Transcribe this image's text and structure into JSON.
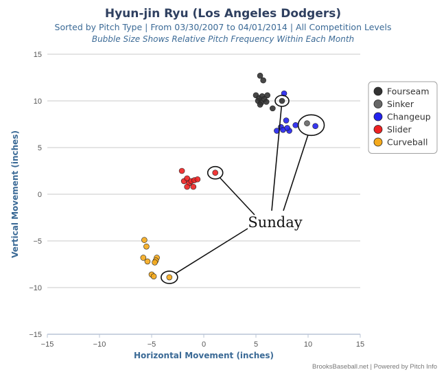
{
  "chart_data": {
    "type": "scatter",
    "title": "Hyun-jin Ryu (Los Angeles Dodgers)",
    "subtitle": "Sorted by Pitch Type | From 03/30/2007 to 04/01/2014 | All Competition Levels",
    "subtitle2": "Bubble Size Shows Relative Pitch Frequency Within Each Month",
    "xlabel": "Horizontal Movement (inches)",
    "ylabel": "Vertical Movement (inches)",
    "xlim": [
      -15,
      15
    ],
    "ylim": [
      -15,
      15
    ],
    "xticks": [
      "−15",
      "−10",
      "−5",
      "0",
      "5",
      "10",
      "15"
    ],
    "yticks": [
      "15",
      "10",
      "5",
      "0",
      "−5",
      "−10",
      "−15"
    ],
    "grid": true,
    "legend_position": "top-right",
    "series": [
      {
        "name": "Fourseam",
        "color": "#333333",
        "points": [
          {
            "x": 5.4,
            "y": 12.7
          },
          {
            "x": 5.7,
            "y": 12.2
          },
          {
            "x": 5.0,
            "y": 10.6
          },
          {
            "x": 5.3,
            "y": 10.3
          },
          {
            "x": 5.6,
            "y": 10.5
          },
          {
            "x": 6.1,
            "y": 10.6
          },
          {
            "x": 5.2,
            "y": 10.0
          },
          {
            "x": 5.5,
            "y": 9.8
          },
          {
            "x": 5.8,
            "y": 10.2
          },
          {
            "x": 6.0,
            "y": 9.9
          },
          {
            "x": 5.4,
            "y": 9.6
          },
          {
            "x": 6.6,
            "y": 9.2
          },
          {
            "x": 7.5,
            "y": 10.0
          }
        ]
      },
      {
        "name": "Sinker",
        "color": "#666666",
        "points": [
          {
            "x": 9.9,
            "y": 7.6
          }
        ]
      },
      {
        "name": "Changeup",
        "color": "#2222ee",
        "points": [
          {
            "x": 7.7,
            "y": 10.8
          },
          {
            "x": 7.9,
            "y": 7.9
          },
          {
            "x": 7.4,
            "y": 7.2
          },
          {
            "x": 7.0,
            "y": 6.8
          },
          {
            "x": 7.6,
            "y": 6.9
          },
          {
            "x": 8.2,
            "y": 6.8
          },
          {
            "x": 8.0,
            "y": 7.1
          },
          {
            "x": 8.8,
            "y": 7.4
          },
          {
            "x": 10.7,
            "y": 7.3
          }
        ]
      },
      {
        "name": "Slider",
        "color": "#ee2222",
        "points": [
          {
            "x": -2.1,
            "y": 2.5
          },
          {
            "x": -1.9,
            "y": 1.4
          },
          {
            "x": -1.6,
            "y": 1.7
          },
          {
            "x": -1.4,
            "y": 1.2
          },
          {
            "x": -1.2,
            "y": 1.4
          },
          {
            "x": -0.9,
            "y": 1.5
          },
          {
            "x": -0.6,
            "y": 1.6
          },
          {
            "x": -1.6,
            "y": 0.8
          },
          {
            "x": -1.0,
            "y": 0.8
          },
          {
            "x": 1.1,
            "y": 2.3
          }
        ]
      },
      {
        "name": "Curveball",
        "color": "#f5aa1c",
        "points": [
          {
            "x": -5.7,
            "y": -4.9
          },
          {
            "x": -5.5,
            "y": -5.6
          },
          {
            "x": -5.8,
            "y": -6.8
          },
          {
            "x": -5.4,
            "y": -7.2
          },
          {
            "x": -4.5,
            "y": -6.8
          },
          {
            "x": -4.6,
            "y": -7.1
          },
          {
            "x": -4.7,
            "y": -7.3
          },
          {
            "x": -5.0,
            "y": -8.6
          },
          {
            "x": -4.8,
            "y": -8.8
          },
          {
            "x": -3.3,
            "y": -8.9
          }
        ]
      }
    ],
    "annotation": {
      "label": "Sunday",
      "targets": [
        {
          "x": 7.5,
          "y": 10.0
        },
        {
          "x": 10.3,
          "y": 7.4
        },
        {
          "x": 1.1,
          "y": 2.3
        },
        {
          "x": -3.3,
          "y": -8.9
        }
      ]
    }
  },
  "footer": {
    "credit": "BrooksBaseball.net | Powered by Pitch Info"
  }
}
